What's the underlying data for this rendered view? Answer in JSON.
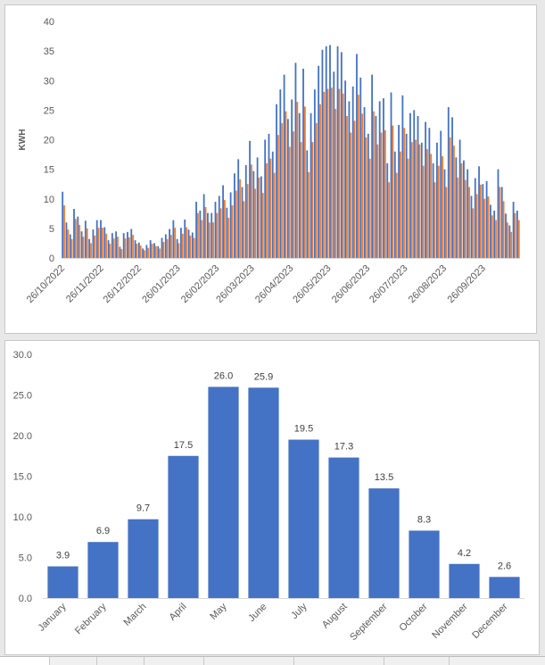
{
  "chart_data": [
    {
      "type": "bar",
      "title": "",
      "xlabel": "",
      "ylabel": "KWH",
      "ylim": [
        0,
        40
      ],
      "yticks": [
        0,
        5,
        10,
        15,
        20,
        25,
        30,
        35,
        40
      ],
      "x_start": "2022-10-26",
      "x_end": "2023-10-26",
      "xtick_labels": [
        "26/10/2022",
        "26/11/2022",
        "26/12/2022",
        "26/01/2023",
        "26/02/2023",
        "26/03/2023",
        "26/04/2023",
        "26/05/2023",
        "26/06/2023",
        "26/07/2023",
        "26/08/2023",
        "26/09/2023"
      ],
      "grid": false,
      "legend": "none",
      "colors": [
        "#4472c4",
        "#ed7d31"
      ],
      "series": [
        {
          "values": [
            11.2,
            6.0,
            4.0,
            8.3,
            7.0,
            4.5,
            6.3,
            3.2,
            4.8,
            6.4,
            6.4,
            5.2,
            3.0,
            4.2,
            4.5,
            1.9,
            4.2,
            4.4,
            4.9,
            3.0,
            2.6,
            1.6,
            2.2,
            3.0,
            2.5,
            2.0,
            3.4,
            4.0,
            4.9,
            6.4,
            3.2,
            5.1,
            6.5,
            4.8,
            4.3,
            9.5,
            8.0,
            10.8,
            7.6,
            7.6,
            9.5,
            10.5,
            12.3,
            8.5,
            11.1,
            14.3,
            16.7,
            12.0,
            15.7,
            19.8,
            14.7,
            17.0,
            13.8,
            20.0,
            21.0,
            18.0,
            26.0,
            28.5,
            31.0,
            23.5,
            26.8,
            33.0,
            24.5,
            32.0,
            18.2,
            24.5,
            28.5,
            32.5,
            35.2,
            35.8,
            36.0,
            31.5,
            35.8,
            34.8,
            30.0,
            26.5,
            29.0,
            34.5,
            30.5,
            25.5,
            21.0,
            31.0,
            24.0,
            26.5,
            27.0,
            16.0,
            28.0,
            18.0,
            22.5,
            27.5,
            21.0,
            24.5,
            25.0,
            24.0,
            19.5,
            23.0,
            22.0,
            16.0,
            19.5,
            21.5,
            15.0,
            25.5,
            23.8,
            17.0,
            20.0,
            16.5,
            15.0,
            10.5,
            13.5,
            15.5,
            12.5,
            13.0,
            9.0,
            8.0,
            15.0,
            12.0,
            7.5,
            5.5,
            9.5,
            8.0
          ]
        },
        {
          "values": [
            8.9,
            4.8,
            3.2,
            6.6,
            5.6,
            3.6,
            5.0,
            2.5,
            3.8,
            5.1,
            5.1,
            4.1,
            2.4,
            3.3,
            3.6,
            1.5,
            3.3,
            3.5,
            3.9,
            2.4,
            2.1,
            1.3,
            1.7,
            2.4,
            2.0,
            1.6,
            2.7,
            3.2,
            3.9,
            5.1,
            2.5,
            4.1,
            5.2,
            3.8,
            3.4,
            7.6,
            6.4,
            8.6,
            6.0,
            6.0,
            7.6,
            8.4,
            9.8,
            6.8,
            8.9,
            11.4,
            13.3,
            9.6,
            12.5,
            15.8,
            11.7,
            13.6,
            11.0,
            16.0,
            16.8,
            14.4,
            20.8,
            22.8,
            24.8,
            18.8,
            21.4,
            26.4,
            19.6,
            25.6,
            14.5,
            19.6,
            22.8,
            26.0,
            28.1,
            28.6,
            28.8,
            25.2,
            28.6,
            27.8,
            24.0,
            21.2,
            23.2,
            27.6,
            24.4,
            20.4,
            16.8,
            24.8,
            19.2,
            21.2,
            21.6,
            12.8,
            22.4,
            14.4,
            18.0,
            22.0,
            16.8,
            19.6,
            20.0,
            19.2,
            15.6,
            18.4,
            17.6,
            12.8,
            15.6,
            17.2,
            12.0,
            20.4,
            19.0,
            13.6,
            16.0,
            13.2,
            12.0,
            8.4,
            10.8,
            12.4,
            10.0,
            10.4,
            7.2,
            6.4,
            12.0,
            9.6,
            6.0,
            4.4,
            7.6,
            6.4
          ]
        }
      ]
    },
    {
      "type": "bar",
      "title": "",
      "xlabel": "",
      "ylabel": "",
      "ylim": [
        0,
        30
      ],
      "ytick_labels": [
        "0.0",
        "5.0",
        "10.0",
        "15.0",
        "20.0",
        "25.0",
        "30.0"
      ],
      "grid": false,
      "legend": "none",
      "color": "#4472c4",
      "categories": [
        "January",
        "February",
        "March",
        "April",
        "May",
        "June",
        "July",
        "August",
        "September",
        "October",
        "November",
        "December"
      ],
      "values": [
        3.9,
        6.9,
        9.7,
        17.5,
        26.0,
        25.9,
        19.5,
        17.3,
        13.5,
        8.3,
        4.2,
        2.6
      ],
      "data_labels": [
        "3.9",
        "6.9",
        "9.7",
        "17.5",
        "26.0",
        "25.9",
        "19.5",
        "17.3",
        "13.5",
        "8.3",
        "4.2",
        "2.6"
      ]
    }
  ]
}
